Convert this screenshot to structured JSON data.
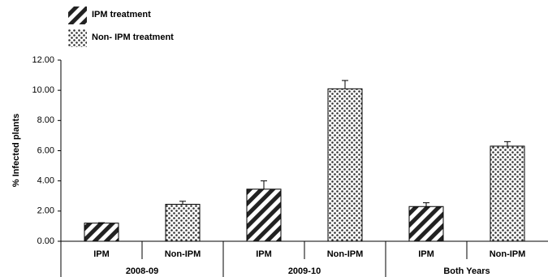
{
  "chart_data": {
    "type": "bar",
    "y_label": "% Infected plants",
    "groups": [
      "2008-09",
      "2009-10",
      "Both Years"
    ],
    "categories": [
      "IPM",
      "Non-IPM",
      "IPM",
      "Non-IPM",
      "IPM",
      "Non-IPM"
    ],
    "series": [
      {
        "name": "IPM treatment",
        "pattern": "stripes",
        "values": [
          1.2,
          null,
          3.45,
          null,
          2.3,
          null
        ],
        "errors": [
          0.03,
          null,
          0.55,
          null,
          0.25,
          null
        ]
      },
      {
        "name": "Non- IPM treatment",
        "pattern": "dots",
        "values": [
          null,
          2.45,
          null,
          10.1,
          null,
          6.3
        ],
        "errors": [
          null,
          0.2,
          null,
          0.55,
          null,
          0.3
        ]
      }
    ],
    "ylim": [
      0,
      12
    ],
    "yticks": [
      {
        "value": 0,
        "label": "0.00"
      },
      {
        "value": 2,
        "label": "2.00"
      },
      {
        "value": 4,
        "label": "4.00"
      },
      {
        "value": 6,
        "label": "6.00"
      },
      {
        "value": 8,
        "label": "8.00"
      },
      {
        "value": 10,
        "label": "10.00"
      },
      {
        "value": 12,
        "label": "12.00"
      }
    ],
    "grid": false
  }
}
